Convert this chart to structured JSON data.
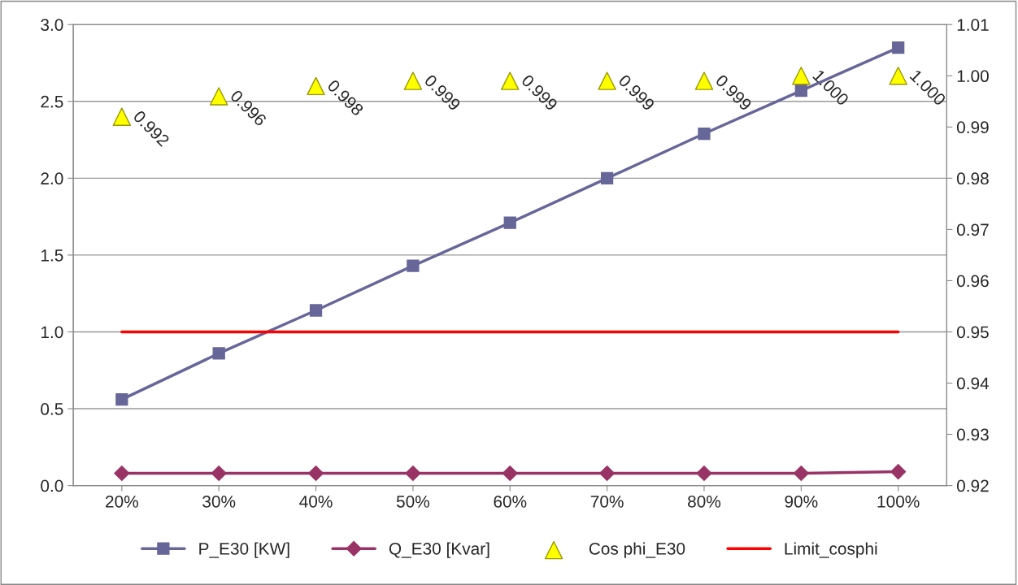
{
  "chart_data": {
    "type": "line",
    "categories": [
      "20%",
      "30%",
      "40%",
      "50%",
      "60%",
      "70%",
      "80%",
      "90%",
      "100%"
    ],
    "series": [
      {
        "name": "P_E30 [KW]",
        "color": "#666699",
        "marker": "square",
        "values": [
          0.56,
          0.86,
          1.14,
          1.43,
          1.71,
          2.0,
          2.29,
          2.57,
          2.85
        ]
      },
      {
        "name": "Q_E30 [Kvar]",
        "color": "#993366",
        "marker": "diamond",
        "values": [
          0.08,
          0.08,
          0.08,
          0.08,
          0.08,
          0.08,
          0.08,
          0.08,
          0.09
        ]
      },
      {
        "name": "Cos phi_E30",
        "type": "scatter",
        "color": "#ffff00",
        "marker": "triangle",
        "axis": "y2",
        "values": [
          0.992,
          0.996,
          0.998,
          0.999,
          0.999,
          0.999,
          0.999,
          1.0,
          1.0
        ],
        "value_labels": [
          "0.992",
          "0.996",
          "0.998",
          "0.999",
          "0.999",
          "0.999",
          "0.999",
          "1.000",
          "1.000"
        ]
      },
      {
        "name": "Limit_cosphi",
        "color": "#ff0000",
        "marker": "none",
        "axis": "y2",
        "values": [
          0.95,
          0.95,
          0.95,
          0.95,
          0.95,
          0.95,
          0.95,
          0.95,
          0.95
        ]
      }
    ],
    "ylim": [
      0,
      3
    ],
    "yticks": [
      {
        "value": 0,
        "label": "0.0"
      },
      {
        "value": 0.5,
        "label": "0.5"
      },
      {
        "value": 1,
        "label": "1.0"
      },
      {
        "value": 1.5,
        "label": "1.5"
      },
      {
        "value": 2,
        "label": "2.0"
      },
      {
        "value": 2.5,
        "label": "2.5"
      },
      {
        "value": 3,
        "label": "3.0"
      }
    ],
    "y2lim": [
      0.92,
      1.01
    ],
    "y2ticks": [
      {
        "value": 0.92,
        "label": "0.92"
      },
      {
        "value": 0.93,
        "label": "0.93"
      },
      {
        "value": 0.94,
        "label": "0.94"
      },
      {
        "value": 0.95,
        "label": "0.95"
      },
      {
        "value": 0.96,
        "label": "0.96"
      },
      {
        "value": 0.97,
        "label": "0.97"
      },
      {
        "value": 0.98,
        "label": "0.98"
      },
      {
        "value": 0.99,
        "label": "0.99"
      },
      {
        "value": 1.0,
        "label": "1.00"
      },
      {
        "value": 1.01,
        "label": "1.01"
      }
    ],
    "grid": "y",
    "legend": "bottom"
  }
}
